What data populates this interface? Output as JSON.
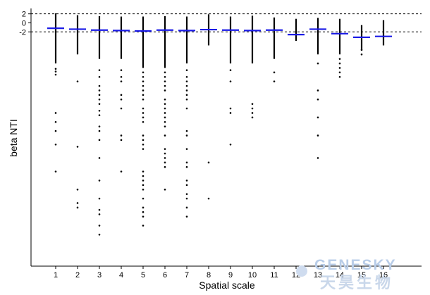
{
  "chart_data": {
    "type": "boxplot",
    "xlabel": "Spatial scale",
    "ylabel": "beta NTI",
    "categories": [
      "1",
      "2",
      "3",
      "4",
      "5",
      "6",
      "7",
      "8",
      "9",
      "10",
      "11",
      "12",
      "13",
      "14",
      "15",
      "16"
    ],
    "yticks": [
      2,
      0,
      -2
    ],
    "ylim": [
      -54,
      3.2
    ],
    "reference_lines": [
      2,
      -2
    ],
    "series": [
      {
        "values": [
          -1.2,
          -1.4,
          -1.6,
          -1.7,
          -1.8,
          -1.6,
          -1.7,
          -1.5,
          -1.6,
          -1.7,
          -1.6,
          -2.6,
          -1.4,
          -2.4,
          -3.2,
          -3.0
        ],
        "whisker_low": [
          -9,
          -7,
          -8,
          -8,
          -10,
          -10,
          -9,
          -5,
          -9,
          -9,
          -8,
          -4,
          -7,
          -7,
          -6,
          -5
        ],
        "whisker_high": [
          2.1,
          1.7,
          1.5,
          1.4,
          1.4,
          1.5,
          1.4,
          1.9,
          1.4,
          1.6,
          1.2,
          0.9,
          1.1,
          0.9,
          -0.5,
          0.6
        ]
      }
    ],
    "outliers": [
      [
        -10.2,
        -10.8,
        -11.5,
        -20,
        -22,
        -24,
        -27,
        -33
      ],
      [
        -13,
        -27.5,
        -37,
        -40,
        -41
      ],
      [
        -10.5,
        -12,
        -14,
        -15,
        -16,
        -17,
        -18,
        -19.5,
        -20.5,
        -23,
        -24,
        -26,
        -30,
        -35,
        -39,
        -41.5,
        -42.5,
        -45,
        -47
      ],
      [
        -10.5,
        -12,
        -13,
        -16,
        -17,
        -19,
        -25,
        -26,
        -33
      ],
      [
        -11,
        -12,
        -13,
        -14,
        -15,
        -16,
        -17,
        -19,
        -20,
        -21,
        -22,
        -25,
        -26,
        -27,
        -28,
        -33,
        -34,
        -35,
        -36,
        -37,
        -39,
        -41,
        -42,
        -43,
        -45
      ],
      [
        -11,
        -12,
        -13,
        -14,
        -15,
        -17,
        -18,
        -19,
        -20,
        -21,
        -22,
        -23,
        -25,
        -28,
        -29,
        -30,
        -31,
        -32,
        -37
      ],
      [
        -10.5,
        -12,
        -13,
        -14,
        -15,
        -16,
        -17,
        -19,
        -24,
        -25,
        -28,
        -31,
        -32,
        -35,
        -36,
        -38,
        -39,
        -41,
        -43
      ],
      [
        -31,
        -39
      ],
      [
        -10.5,
        -13,
        -19,
        -20,
        -27
      ],
      [
        -18,
        -19,
        -20,
        -21
      ],
      [
        -11,
        -13
      ],
      [],
      [
        -9,
        -15,
        -17,
        -21,
        -25,
        -30
      ],
      [
        -8,
        -9,
        -10,
        -11,
        -12
      ],
      [
        -6,
        -7
      ],
      []
    ]
  },
  "watermark": {
    "brand": "GENESKY",
    "chinese": "天昊生物",
    "logo_color": "#b9cde8"
  }
}
